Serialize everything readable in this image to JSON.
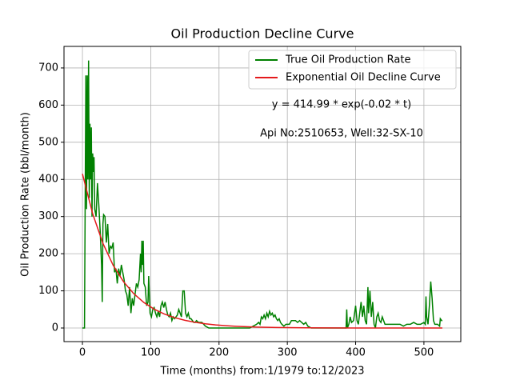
{
  "chart_data": {
    "type": "line",
    "title": "Oil Production Decline Curve",
    "xlabel": "Time (months) from:1/1979 to:12/2023",
    "ylabel": "Oil Production Rate (bbl/month)",
    "annotations": [
      "y = 414.99 * exp(-0.02 * t)",
      "Api No:2510653, Well:32-SX-10"
    ],
    "xlim": [
      -27,
      554
    ],
    "ylim": [
      -36.6,
      758
    ],
    "xticks": [
      0,
      100,
      200,
      300,
      400,
      500
    ],
    "yticks": [
      0,
      100,
      200,
      300,
      400,
      500,
      600,
      700
    ],
    "grid": true,
    "legend": "upper right",
    "series": [
      {
        "name": "True Oil Production Rate",
        "color": "#008000",
        "x": [
          0,
          3,
          5,
          6,
          7,
          8,
          9,
          10,
          11,
          12,
          13,
          14,
          15,
          16,
          17,
          18,
          20,
          22,
          24,
          26,
          28,
          29,
          30,
          31,
          33,
          35,
          37,
          39,
          41,
          43,
          45,
          47,
          49,
          51,
          53,
          55,
          57,
          59,
          61,
          63,
          65,
          67,
          69,
          71,
          73,
          75,
          77,
          79,
          81,
          83,
          85,
          86,
          87,
          88,
          89,
          90,
          92,
          94,
          96,
          97,
          99,
          101,
          103,
          105,
          107,
          109,
          111,
          113,
          115,
          117,
          119,
          121,
          123,
          125,
          127,
          129,
          131,
          133,
          135,
          137,
          139,
          141,
          143,
          145,
          147,
          149,
          151,
          153,
          155,
          157,
          159,
          161,
          163,
          165,
          167,
          170,
          175,
          180,
          185,
          195,
          210,
          220,
          230,
          245,
          250,
          255,
          258,
          260,
          262,
          264,
          266,
          268,
          270,
          272,
          274,
          276,
          278,
          280,
          282,
          284,
          286,
          288,
          290,
          292,
          295,
          298,
          300,
          303,
          306,
          309,
          312,
          315,
          318,
          321,
          324,
          327,
          330,
          335,
          340,
          350,
          360,
          370,
          380,
          386,
          387,
          388,
          390,
          392,
          394,
          397,
          400,
          402,
          404,
          406,
          408,
          410,
          412,
          414,
          416,
          418,
          419,
          421,
          423,
          425,
          427,
          429,
          431,
          433,
          435,
          437,
          439,
          441,
          443,
          448,
          455,
          460,
          465,
          470,
          475,
          480,
          485,
          490,
          495,
          500,
          502,
          503,
          504,
          506,
          508,
          510,
          512,
          514,
          516,
          520,
          523,
          524,
          526,
          527
        ],
        "values": [
          0,
          0,
          680,
          320,
          680,
          400,
          720,
          350,
          550,
          400,
          540,
          300,
          470,
          420,
          460,
          320,
          300,
          390,
          330,
          260,
          170,
          70,
          280,
          305,
          300,
          230,
          280,
          200,
          220,
          215,
          230,
          150,
          160,
          120,
          160,
          140,
          170,
          150,
          130,
          100,
          90,
          60,
          110,
          40,
          80,
          60,
          90,
          120,
          110,
          130,
          200,
          150,
          235,
          170,
          235,
          120,
          110,
          60,
          70,
          140,
          40,
          30,
          50,
          55,
          40,
          30,
          45,
          30,
          60,
          70,
          55,
          70,
          50,
          35,
          30,
          40,
          20,
          30,
          25,
          30,
          35,
          50,
          40,
          30,
          100,
          100,
          40,
          30,
          40,
          25,
          25,
          20,
          15,
          15,
          20,
          15,
          15,
          5,
          0,
          0,
          0,
          0,
          0,
          0,
          5,
          10,
          15,
          10,
          30,
          25,
          35,
          25,
          40,
          30,
          45,
          35,
          40,
          30,
          35,
          25,
          20,
          25,
          15,
          10,
          5,
          10,
          10,
          10,
          20,
          20,
          20,
          15,
          20,
          15,
          10,
          15,
          5,
          0,
          0,
          0,
          0,
          0,
          0,
          0,
          50,
          0,
          10,
          30,
          15,
          20,
          60,
          20,
          10,
          40,
          70,
          30,
          60,
          20,
          10,
          110,
          40,
          100,
          30,
          70,
          10,
          0,
          30,
          40,
          20,
          15,
          30,
          20,
          10,
          10,
          10,
          10,
          10,
          5,
          10,
          10,
          15,
          10,
          10,
          15,
          10,
          85,
          30,
          10,
          60,
          125,
          80,
          20,
          10,
          10,
          5,
          25,
          20,
          20
        ]
      },
      {
        "name": "Exponential Oil Decline Curve",
        "color": "#e41a1c",
        "x": [
          0,
          15,
          30,
          45,
          60,
          75,
          90,
          105,
          120,
          135,
          150,
          165,
          180,
          195,
          210,
          225,
          240,
          255,
          270,
          285,
          300,
          330,
          360,
          400,
          450,
          527
        ],
        "values": [
          414.99,
          307.4,
          227.8,
          168.7,
          125.0,
          92.6,
          68.6,
          50.8,
          37.6,
          27.9,
          20.7,
          15.3,
          11.3,
          8.4,
          6.2,
          4.6,
          3.4,
          2.5,
          1.9,
          1.4,
          1.0,
          0.6,
          0.3,
          0.1,
          0.05,
          0.01
        ]
      }
    ]
  }
}
